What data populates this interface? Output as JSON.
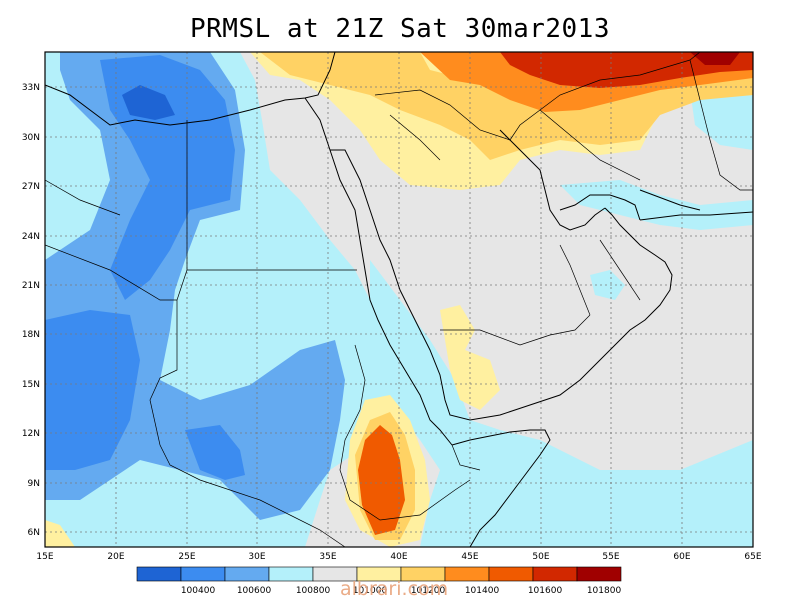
{
  "title": "PRMSL at 21Z Sat 30mar2013",
  "lat_labels": [
    "33N",
    "30N",
    "27N",
    "24N",
    "21N",
    "18N",
    "15N",
    "12N",
    "9N",
    "6N"
  ],
  "lon_labels": [
    "15E",
    "20E",
    "25E",
    "30E",
    "35E",
    "40E",
    "45E",
    "50E",
    "55E",
    "60E",
    "65E"
  ],
  "legend": {
    "colors": [
      "#1e64d4",
      "#3c8cf0",
      "#64aaf0",
      "#b4f0fa",
      "#e6e6e6",
      "#fff0a0",
      "#ffd264",
      "#ff8c1e",
      "#f05a00",
      "#d22800",
      "#a00000"
    ],
    "labels": [
      "100400",
      "100600",
      "100800",
      "101000",
      "101200",
      "101400",
      "101600",
      "101800"
    ]
  },
  "watermark": "albrari.com"
}
